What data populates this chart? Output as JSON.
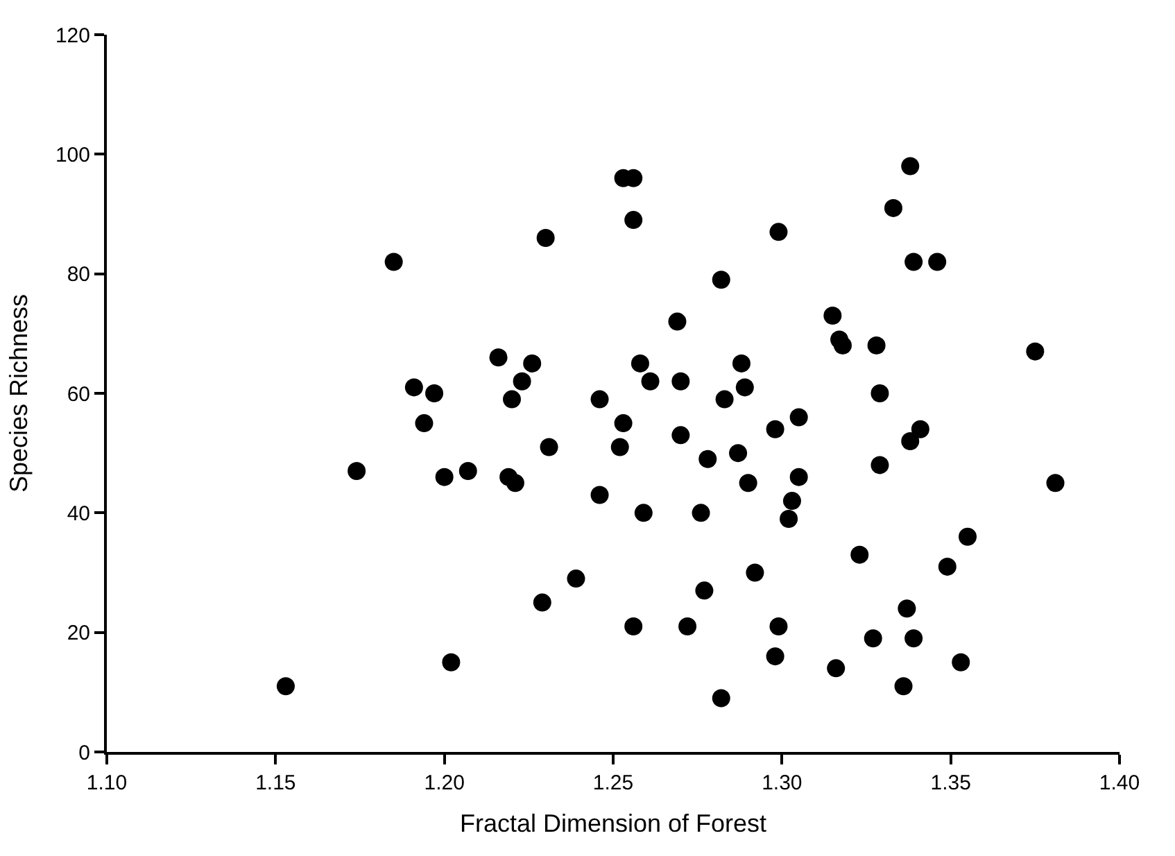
{
  "chart_data": {
    "type": "scatter",
    "xlabel": "Fractal Dimension of Forest",
    "ylabel": "Species Richness",
    "x": [
      1.153,
      1.174,
      1.185,
      1.191,
      1.194,
      1.197,
      1.2,
      1.202,
      1.207,
      1.216,
      1.219,
      1.22,
      1.221,
      1.223,
      1.226,
      1.229,
      1.23,
      1.231,
      1.239,
      1.246,
      1.246,
      1.252,
      1.253,
      1.253,
      1.256,
      1.256,
      1.256,
      1.258,
      1.259,
      1.261,
      1.269,
      1.27,
      1.27,
      1.272,
      1.276,
      1.277,
      1.278,
      1.282,
      1.283,
      1.282,
      1.287,
      1.288,
      1.289,
      1.29,
      1.292,
      1.298,
      1.299,
      1.299,
      1.298,
      1.302,
      1.303,
      1.305,
      1.305,
      1.315,
      1.317,
      1.318,
      1.316,
      1.323,
      1.327,
      1.328,
      1.329,
      1.329,
      1.333,
      1.338,
      1.339,
      1.346,
      1.337,
      1.338,
      1.341,
      1.339,
      1.336,
      1.349,
      1.353,
      1.355,
      1.375,
      1.381
    ],
    "values": [
      11,
      47,
      82,
      61,
      55,
      60,
      46,
      15,
      47,
      66,
      46,
      59,
      45,
      62,
      65,
      25,
      86,
      51,
      29,
      59,
      43,
      51,
      55,
      96,
      96,
      89,
      21,
      65,
      40,
      62,
      72,
      62,
      53,
      21,
      40,
      27,
      49,
      79,
      59,
      9,
      50,
      65,
      61,
      45,
      30,
      54,
      87,
      21,
      16,
      39,
      42,
      56,
      46,
      73,
      69,
      68,
      14,
      33,
      19,
      68,
      60,
      48,
      91,
      98,
      82,
      82,
      24,
      52,
      54,
      19,
      11,
      31,
      15,
      36,
      67,
      45
    ],
    "color": "#000000",
    "marker": "circle",
    "xlim": [
      1.1,
      1.4
    ],
    "ylim": [
      0,
      120
    ],
    "xticks": [
      {
        "value": 1.1,
        "label": "1.10"
      },
      {
        "value": 1.15,
        "label": "1.15"
      },
      {
        "value": 1.2,
        "label": "1.20"
      },
      {
        "value": 1.25,
        "label": "1.25"
      },
      {
        "value": 1.3,
        "label": "1.30"
      },
      {
        "value": 1.35,
        "label": "1.35"
      },
      {
        "value": 1.4,
        "label": "1.40"
      }
    ],
    "yticks": [
      0,
      20,
      40,
      60,
      80,
      100,
      120
    ]
  }
}
